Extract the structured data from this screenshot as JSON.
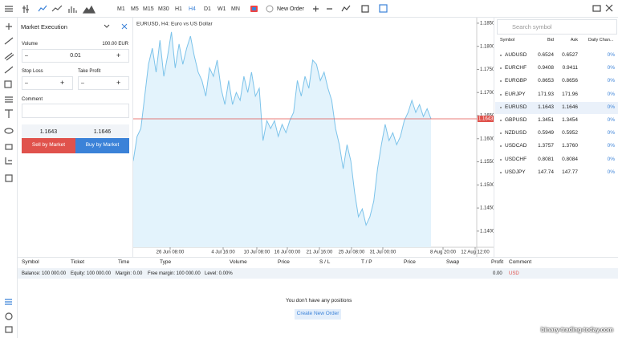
{
  "toolbar": {
    "timeframes": [
      "M1",
      "M5",
      "M15",
      "M30",
      "H1",
      "H4",
      "D1",
      "W1",
      "MN"
    ],
    "active_timeframe": "H4",
    "new_order": "New Order"
  },
  "order_panel": {
    "title": "Market Execution",
    "volume_label": "Volume",
    "volume_hint": "100.00 EUR",
    "volume": "0.01",
    "minus": "–",
    "plus": "+",
    "stop_loss": "Stop Loss",
    "take_profit": "Take Profit",
    "comment": "Comment",
    "bid": "1.1643",
    "ask": "1.1646",
    "sell": "Sell by Market",
    "buy": "Buy by Market"
  },
  "chart": {
    "type": "area",
    "title": "EURUSD, H4: Euro vs US Dollar",
    "color": "#7cc3ea",
    "values": [
      1.1552,
      1.1605,
      1.1622,
      1.1692,
      1.1761,
      1.1796,
      1.1744,
      1.1813,
      1.1735,
      1.1779,
      1.1831,
      1.1753,
      1.1805,
      1.1761,
      1.1796,
      1.1822,
      1.1779,
      1.1744,
      1.1726,
      1.1692,
      1.1753,
      1.1735,
      1.177,
      1.1709,
      1.1674,
      1.1726,
      1.1674,
      1.17,
      1.1683,
      1.1735,
      1.17,
      1.1744,
      1.1692,
      1.1709,
      1.1596,
      1.1639,
      1.1622,
      1.1639,
      1.1605,
      1.1631,
      1.1613,
      1.1639,
      1.1657,
      1.1726,
      1.1692,
      1.1735,
      1.1709,
      1.177,
      1.1761,
      1.1726,
      1.1744,
      1.1709,
      1.1683,
      1.1622,
      1.1587,
      1.1535,
      1.1587,
      1.1552,
      1.1483,
      1.1431,
      1.1448,
      1.1413,
      1.1431,
      1.1465,
      1.1535,
      1.1587,
      1.1631,
      1.1596,
      1.1613,
      1.1587,
      1.1605,
      1.1639,
      1.1657,
      1.1683,
      1.1657,
      1.1674,
      1.1648,
      1.1665,
      1.1643
    ],
    "ylim": [
      1.1365,
      1.1862
    ],
    "yticks": [
      {
        "value": 1.185,
        "label": "1.1850"
      },
      {
        "value": 1.18,
        "label": "1.1800"
      },
      {
        "value": 1.175,
        "label": "1.1750"
      },
      {
        "value": 1.17,
        "label": "1.1700"
      },
      {
        "value": 1.165,
        "label": "1.1650"
      },
      {
        "value": 1.16,
        "label": "1.1600"
      },
      {
        "value": 1.155,
        "label": "1.1550"
      },
      {
        "value": 1.15,
        "label": "1.1500"
      },
      {
        "value": 1.145,
        "label": "1.1450"
      },
      {
        "value": 1.14,
        "label": "1.1400"
      }
    ],
    "xticks": [
      "26 Jun 08:00",
      "4 Jul 16:00",
      "10 Jul 08:00",
      "16 Jul 00:00",
      "21 Jul 16:00",
      "25 Jul 08:00",
      "31 Jul 00:00",
      "8 Aug 20:00",
      "12 Aug 12:00"
    ],
    "current_price": 1.1643
  },
  "market_watch": {
    "search": "Search symbol",
    "columns": [
      "Symbol",
      "Bid",
      "Ask",
      "Daily Chan..."
    ],
    "rows": [
      [
        "AUDUSD",
        "0.6524",
        "0.6527",
        "0%"
      ],
      [
        "EURCHF",
        "0.9408",
        "0.9411",
        "0%"
      ],
      [
        "EURGBP",
        "0.8653",
        "0.8656",
        "0%"
      ],
      [
        "EURJPY",
        "171.93",
        "171.96",
        "0%"
      ],
      [
        "EURUSD",
        "1.1643",
        "1.1646",
        "0%"
      ],
      [
        "GBPUSD",
        "1.3451",
        "1.3454",
        "0%"
      ],
      [
        "NZDUSD",
        "0.5949",
        "0.5952",
        "0%"
      ],
      [
        "USDCAD",
        "1.3757",
        "1.3760",
        "0%"
      ],
      [
        "USDCHF",
        "0.8081",
        "0.8084",
        "0%"
      ],
      [
        "USDJPY",
        "147.74",
        "147.77",
        "0%"
      ]
    ],
    "selected": 4
  },
  "positions": {
    "columns": [
      "Symbol",
      "Ticket",
      "Time",
      "Type",
      "Volume",
      "Price",
      "S / L",
      "T / P",
      "Price",
      "Swap",
      "Profit",
      "Comment"
    ],
    "balance": [
      "Balance: 100 000.00",
      "Equity: 100 000.00",
      "Margin: 0.00",
      "Free margin: 100 000.00",
      "Level: 0.00%"
    ],
    "profit": "0.00",
    "currency": "USD",
    "empty": "You don't have any positions",
    "create": "Create New Order"
  },
  "watermark": "binary-trading-today.com"
}
